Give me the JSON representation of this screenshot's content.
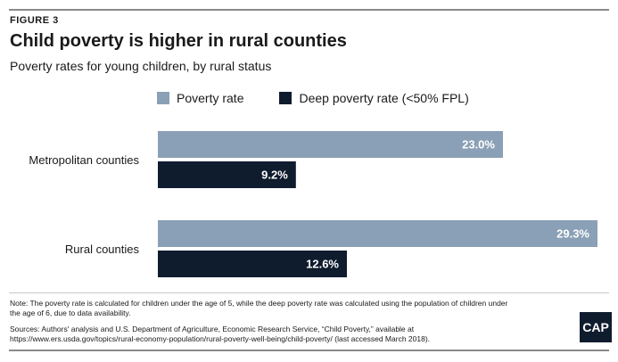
{
  "header": {
    "figure_label": "FIGURE 3",
    "title": "Child poverty is higher in rural counties",
    "subtitle": "Poverty rates for young children, by rural status"
  },
  "chart_data": {
    "type": "bar",
    "orientation": "horizontal",
    "categories": [
      "Metropolitan counties",
      "Rural counties"
    ],
    "series": [
      {
        "name": "Poverty rate",
        "values": [
          23.0,
          29.3
        ],
        "labels": [
          "23.0%",
          "29.3%"
        ],
        "color": "#8aa0b6"
      },
      {
        "name": "Deep poverty rate (<50% FPL)",
        "values": [
          9.2,
          12.6
        ],
        "labels": [
          "9.2%",
          "12.6%"
        ],
        "color": "#0f1c2e"
      }
    ],
    "xlim": [
      0,
      29.3
    ],
    "grid": false,
    "legend_position": "top-left"
  },
  "footer": {
    "note": "Note: The poverty rate is calculated for children under the age of 5, while the deep poverty rate was calculated using the population of children under the age of 6, due to data availability.",
    "sources": "Sources: Authors' analysis and U.S. Department of Agriculture, Economic Research Service, “Child Poverty,” available at https://www.ers.usda.gov/topics/rural-economy-population/rural-poverty-well-being/child-poverty/ (last accessed March 2018).",
    "logo_text": "CAP"
  }
}
